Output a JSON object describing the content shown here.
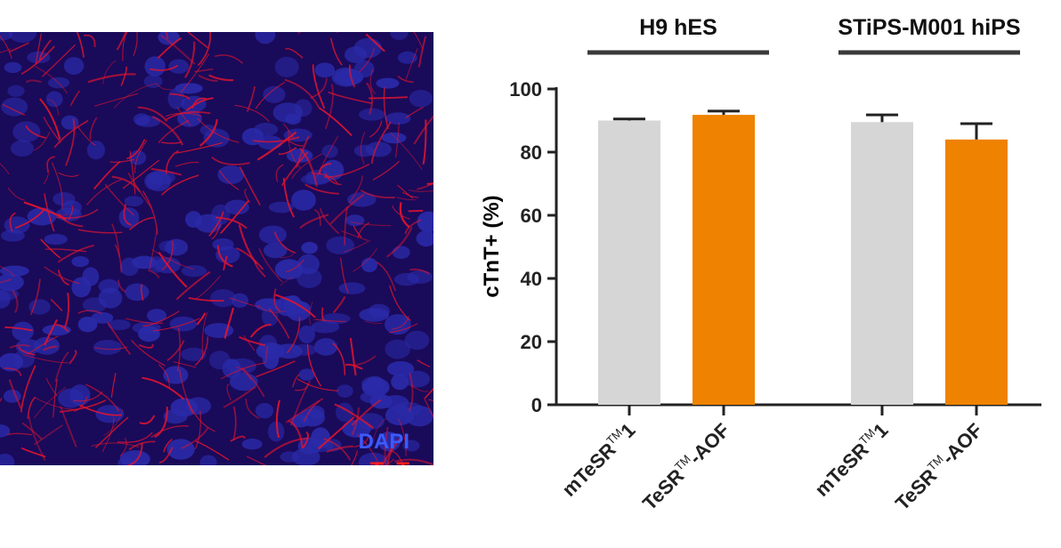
{
  "micrograph": {
    "legend": [
      {
        "label": "DAPI",
        "color": "#3a5bff"
      },
      {
        "label": "cTnT",
        "color": "#ff1a1a"
      }
    ],
    "colors": {
      "background": "#1a0a5a",
      "nucleus": "#2a2aa8",
      "fiber": "#e0142e"
    }
  },
  "chart_data": {
    "type": "bar",
    "ylabel": "cTnT+ (%)",
    "ylim": [
      0,
      100
    ],
    "yticks": [
      0,
      20,
      40,
      60,
      80,
      100
    ],
    "groups": [
      {
        "title": "H9 hES",
        "bars": [
          {
            "base": "mTeSR",
            "sup": "TM",
            "suffix": "1",
            "value": 90,
            "error": 0.5,
            "color": "#d6d6d6"
          },
          {
            "base": "TeSR",
            "sup": "TM",
            "suffix": "-AOF",
            "value": 91.8,
            "error": 1.2,
            "color": "#ef8200"
          }
        ]
      },
      {
        "title": "STiPS-M001 hiPS",
        "bars": [
          {
            "base": "mTeSR",
            "sup": "TM",
            "suffix": "1",
            "value": 89.5,
            "error": 2.3,
            "color": "#d6d6d6"
          },
          {
            "base": "TeSR",
            "sup": "TM",
            "suffix": "-AOF",
            "value": 84,
            "error": 5,
            "color": "#ef8200"
          }
        ]
      }
    ]
  }
}
